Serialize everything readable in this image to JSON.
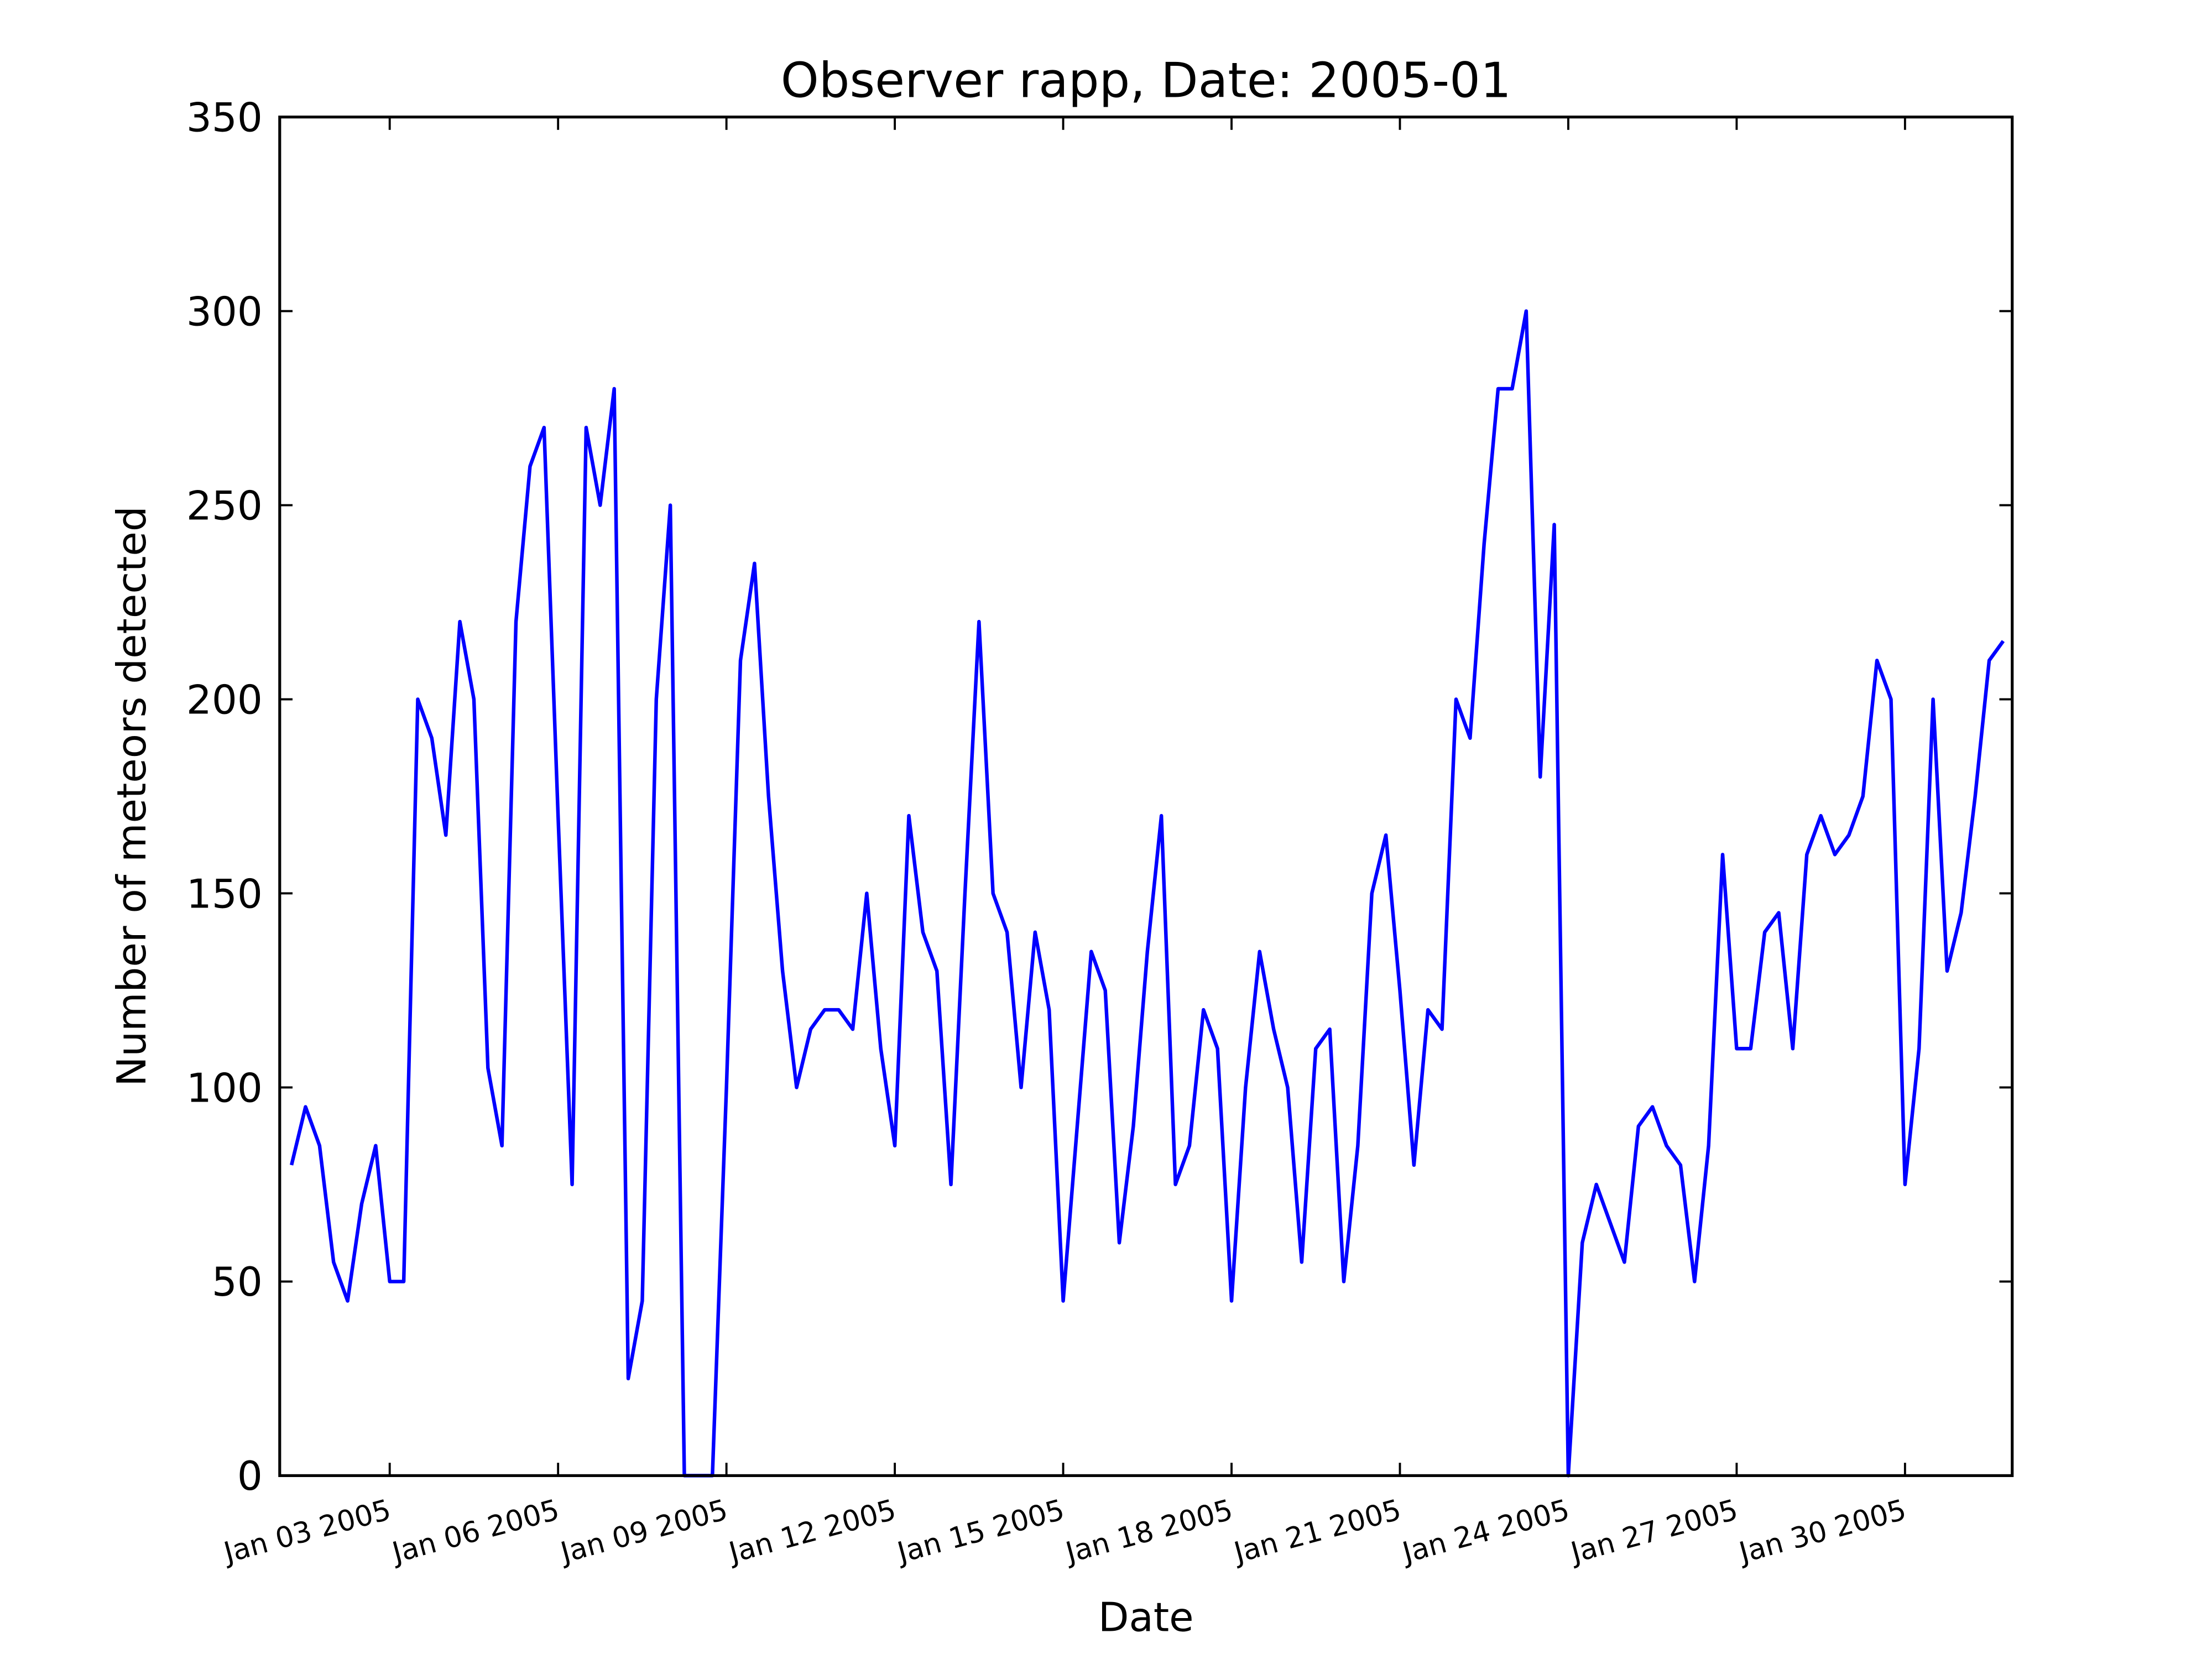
{
  "chart_data": {
    "type": "line",
    "title": "Observer rapp, Date: 2005-01",
    "x_label": "Date",
    "y_label": "Number of meteors detected",
    "color": "#0000ff",
    "x": [
      1.25,
      1.5,
      1.75,
      2,
      2.25,
      2.5,
      2.75,
      3,
      3.25,
      3.5,
      3.75,
      4,
      4.25,
      4.5,
      4.75,
      5,
      5.25,
      5.5,
      5.75,
      6,
      6.25,
      6.5,
      6.75,
      7,
      7.25,
      7.5,
      7.75,
      8,
      8.25,
      8.5,
      8.75,
      9,
      9.25,
      9.5,
      9.75,
      10,
      10.25,
      10.5,
      10.75,
      11,
      11.25,
      11.5,
      11.75,
      12,
      12.25,
      12.5,
      12.75,
      13,
      13.25,
      13.5,
      13.75,
      14,
      14.25,
      14.5,
      14.75,
      15,
      15.25,
      15.5,
      15.75,
      16,
      16.25,
      16.5,
      16.75,
      17,
      17.25,
      17.5,
      17.75,
      18,
      18.25,
      18.5,
      18.75,
      19,
      19.25,
      19.5,
      19.75,
      20,
      20.25,
      20.5,
      20.75,
      21,
      21.25,
      21.5,
      21.75,
      22,
      22.25,
      22.5,
      22.75,
      23,
      23.25,
      23.5,
      23.75,
      24,
      24.25,
      24.5,
      24.75,
      25,
      25.25,
      25.5,
      25.75,
      26,
      26.25,
      26.5,
      26.75,
      27,
      27.25,
      27.5,
      27.75,
      28,
      28.25,
      28.5,
      28.75,
      29,
      29.25,
      29.5,
      29.75,
      30,
      30.25,
      30.5,
      30.75,
      31,
      31.25,
      31.5,
      31.75
    ],
    "values": [
      80,
      95,
      85,
      55,
      45,
      70,
      85,
      50,
      50,
      200,
      190,
      165,
      220,
      200,
      105,
      85,
      220,
      260,
      270,
      170,
      75,
      270,
      250,
      280,
      25,
      45,
      200,
      250,
      0,
      0,
      0,
      100,
      210,
      235,
      175,
      130,
      100,
      115,
      120,
      120,
      115,
      150,
      110,
      85,
      170,
      140,
      130,
      75,
      150,
      220,
      150,
      140,
      100,
      140,
      120,
      45,
      90,
      135,
      125,
      60,
      90,
      135,
      170,
      75,
      85,
      120,
      110,
      45,
      100,
      135,
      115,
      100,
      55,
      110,
      115,
      50,
      85,
      150,
      165,
      125,
      80,
      120,
      115,
      200,
      190,
      240,
      280,
      280,
      300,
      180,
      245,
      0,
      60,
      75,
      65,
      55,
      90,
      95,
      85,
      80,
      50,
      85,
      160,
      110,
      110,
      140,
      145,
      110,
      160,
      170,
      160,
      165,
      175,
      210,
      200,
      75,
      110,
      200,
      130,
      145,
      175,
      210,
      215
    ],
    "xlim": [
      1.04,
      31.91
    ],
    "xticks": [
      {
        "value": 3,
        "label": "Jan 03 2005"
      },
      {
        "value": 6,
        "label": "Jan 06 2005"
      },
      {
        "value": 9,
        "label": "Jan 09 2005"
      },
      {
        "value": 12,
        "label": "Jan 12 2005"
      },
      {
        "value": 15,
        "label": "Jan 15 2005"
      },
      {
        "value": 18,
        "label": "Jan 18 2005"
      },
      {
        "value": 21,
        "label": "Jan 21 2005"
      },
      {
        "value": 24,
        "label": "Jan 24 2005"
      },
      {
        "value": 27,
        "label": "Jan 27 2005"
      },
      {
        "value": 30,
        "label": "Jan 30 2005"
      }
    ],
    "ylim": [
      0,
      350
    ],
    "yticks": [
      0,
      50,
      100,
      150,
      200,
      250,
      300,
      350
    ]
  }
}
